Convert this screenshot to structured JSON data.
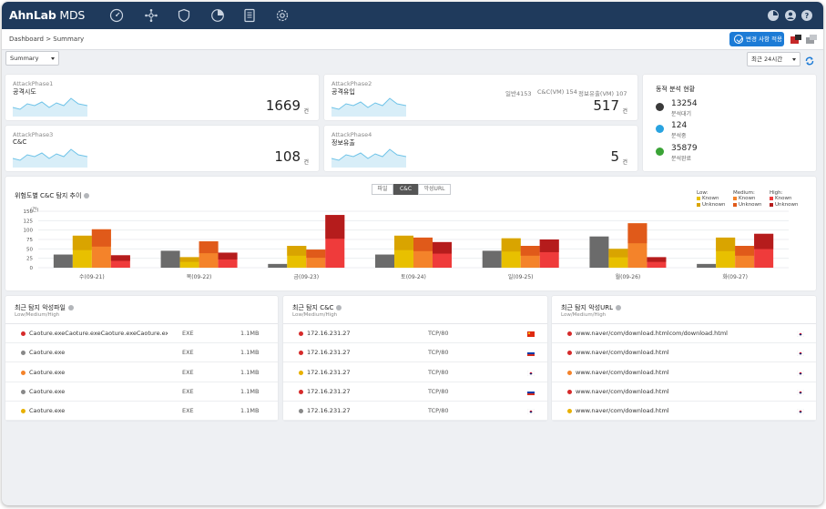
{
  "app": {
    "logo": "AhnLab",
    "logo_suffix": " MDS"
  },
  "nav_icons": [
    "speedometer-icon",
    "network-icon",
    "shield-icon",
    "pie-chart-icon",
    "report-icon",
    "gear-icon"
  ],
  "breadcrumb": "Dashboard > Summary",
  "apply_button": "변경 사항 적용",
  "filters": {
    "view": "Summary",
    "period": "최근 24시간"
  },
  "phases": [
    {
      "label": "AttackPhase1",
      "title": "공격시도",
      "value": "1669",
      "unit": "건"
    },
    {
      "label": "AttackPhase2",
      "title": "공격유입",
      "value": "517",
      "unit": "건",
      "mini": [
        "일반4153",
        "C&C(VM) 154",
        "정보유출(VM) 107"
      ]
    },
    {
      "label": "AttackPhase3",
      "title": "C&C",
      "value": "108",
      "unit": "건"
    },
    {
      "label": "AttackPhase4",
      "title": "정보유출",
      "value": "5",
      "unit": "건"
    }
  ],
  "analysis_status": {
    "title": "동적 분석 현황",
    "items": [
      {
        "value": "13254",
        "label": "분석대기",
        "color": "#3a3a3a"
      },
      {
        "value": "124",
        "label": "분석중",
        "color": "#29a3e0"
      },
      {
        "value": "35879",
        "label": "분석완료",
        "color": "#3aa336"
      }
    ]
  },
  "trend": {
    "title": "위험도별 C&C 탐지 추이",
    "tabs": [
      "파일",
      "C&C",
      "악성URL"
    ],
    "active_tab": "C&C",
    "y_unit": "(건)",
    "legend": {
      "low": "Low:",
      "medium": "Medium:",
      "high": "High:",
      "known": "Known",
      "unknown": "Unknown"
    },
    "colors": {
      "low_known": "#e8c000",
      "low_unknown": "#d9a400",
      "medium_known": "#f4832a",
      "medium_unknown": "#e05a1a",
      "high_known": "#ef3b3b",
      "high_unknown": "#b51c1c",
      "gray": "#6b6b6b"
    }
  },
  "chart_data": {
    "type": "bar",
    "categories": [
      "수(09-21)",
      "목(09-22)",
      "금(09-23)",
      "토(09-24)",
      "일(09-25)",
      "월(09-26)",
      "화(09-27)"
    ],
    "ylim": [
      0,
      150
    ],
    "yticks": [
      0,
      25,
      50,
      75,
      100,
      125,
      150
    ],
    "series": [
      {
        "key": "gray",
        "values": [
          35,
          45,
          10,
          35,
          45,
          83,
          10
        ]
      },
      {
        "key": "low",
        "values": [
          85,
          28,
          58,
          85,
          78,
          50,
          80
        ]
      },
      {
        "key": "medium",
        "values": [
          102,
          70,
          48,
          80,
          58,
          118,
          58
        ]
      },
      {
        "key": "high",
        "values": [
          33,
          40,
          140,
          68,
          75,
          28,
          90
        ]
      }
    ]
  },
  "recent_files": {
    "title": "최근 탐지 악성파일",
    "subtitle": "Low/Medium/High",
    "rows": [
      {
        "name": "Caoture.exeCaoture.exeCaoture.exeCaoture.exeCaoture.exe",
        "type": "EXE",
        "size": "1.1MB",
        "dot": "#d62a2a"
      },
      {
        "name": "Caoture.exe",
        "type": "EXE",
        "size": "1.1MB",
        "dot": "#888888"
      },
      {
        "name": "Caoture.exe",
        "type": "EXE",
        "size": "1.1MB",
        "dot": "#f4832a"
      },
      {
        "name": "Caoture.exe",
        "type": "EXE",
        "size": "1.1MB",
        "dot": "#888888"
      },
      {
        "name": "Caoture.exe",
        "type": "EXE",
        "size": "1.1MB",
        "dot": "#e8b000"
      }
    ]
  },
  "recent_cnc": {
    "title": "최근 탐지 C&C",
    "subtitle": "Low/Medium/High",
    "rows": [
      {
        "ip": "172.16.231.27",
        "port": "TCP/80",
        "dot": "#d62a2a",
        "flag": "china-flag-icon"
      },
      {
        "ip": "172.16.231.27",
        "port": "TCP/80",
        "dot": "#d62a2a",
        "flag": "russia-flag-icon"
      },
      {
        "ip": "172.16.231.27",
        "port": "TCP/80",
        "dot": "#e8b000",
        "flag": "korea-flag-icon"
      },
      {
        "ip": "172.16.231.27",
        "port": "TCP/80",
        "dot": "#d62a2a",
        "flag": "russia-flag-icon"
      },
      {
        "ip": "172.16.231.27",
        "port": "TCP/80",
        "dot": "#888888",
        "flag": "korea-flag-icon"
      }
    ]
  },
  "recent_urls": {
    "title": "최근 탐지 악성URL",
    "subtitle": "Low/Medium/High",
    "rows": [
      {
        "url": "www.naver/com/download.htmlcom/download.html",
        "dot": "#d62a2a"
      },
      {
        "url": "www.naver/com/download.html",
        "dot": "#d62a2a"
      },
      {
        "url": "www.naver/com/download.html",
        "dot": "#f4832a"
      },
      {
        "url": "www.naver/com/download.html",
        "dot": "#d62a2a"
      },
      {
        "url": "www.naver/com/download.html",
        "dot": "#e8b000"
      }
    ]
  }
}
